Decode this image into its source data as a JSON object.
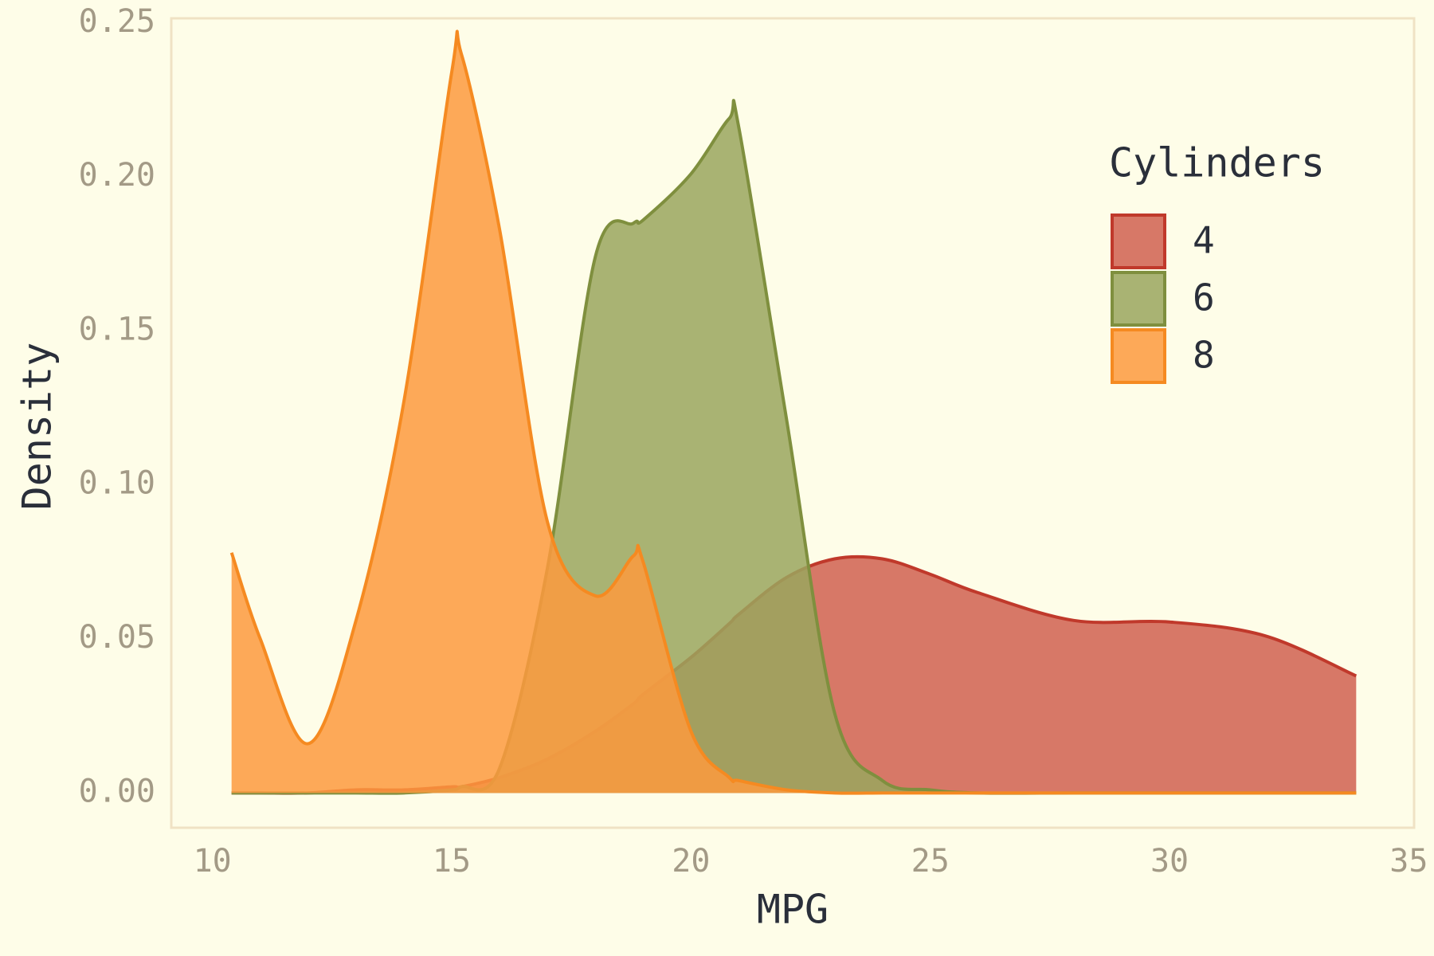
{
  "chart_data": {
    "type": "density",
    "x_label": "MPG",
    "y_label": "Density",
    "legend_title": "Cylinders",
    "legend_position": "right",
    "grid": false,
    "x": [
      10.4,
      11,
      12,
      13,
      14,
      15,
      15.2,
      16,
      17,
      18,
      18.8,
      19,
      20,
      20.8,
      21,
      22,
      23,
      24,
      25,
      26,
      28,
      30,
      32,
      33.9
    ],
    "series": [
      {
        "name": "4",
        "color": "#c0392b",
        "fill": "#d06050",
        "values": [
          0,
          0,
          0,
          0.001,
          0.001,
          0.002,
          0.002,
          0.005,
          0.011,
          0.02,
          0.029,
          0.032,
          0.044,
          0.055,
          0.058,
          0.07,
          0.076,
          0.076,
          0.071,
          0.065,
          0.056,
          0.0555,
          0.051,
          0.038
        ]
      },
      {
        "name": "6",
        "color": "#7f8f3e",
        "fill": "#9aa65e",
        "values": [
          0,
          0,
          0,
          0,
          0,
          0.001,
          0.002,
          0.008,
          0.073,
          0.174,
          0.185,
          0.186,
          0.201,
          0.219,
          0.216,
          0.121,
          0.026,
          0.004,
          0.001,
          0,
          0,
          0,
          0,
          0
        ]
      },
      {
        "name": "8",
        "color": "#f58a21",
        "fill": "#fd9a3e",
        "values": [
          0.078,
          0.05,
          0.016,
          0.056,
          0.127,
          0.234,
          0.24,
          0.183,
          0.088,
          0.064,
          0.077,
          0.075,
          0.02,
          0.005,
          0.004,
          0.001,
          0,
          0,
          0,
          0,
          0,
          0,
          0,
          0
        ]
      }
    ],
    "xlim": [
      9.14,
      35.11
    ],
    "ylim": [
      -0.0113,
      0.2515
    ],
    "xticks": [
      10,
      15,
      20,
      25,
      30,
      35
    ],
    "yticks": [
      {
        "value": 0,
        "label": "0.00"
      },
      {
        "value": 0.05,
        "label": "0.05"
      },
      {
        "value": 0.1,
        "label": "0.10"
      },
      {
        "value": 0.15,
        "label": "0.15"
      },
      {
        "value": 0.2,
        "label": "0.20"
      },
      {
        "value": 0.25,
        "label": "0.25"
      }
    ]
  }
}
